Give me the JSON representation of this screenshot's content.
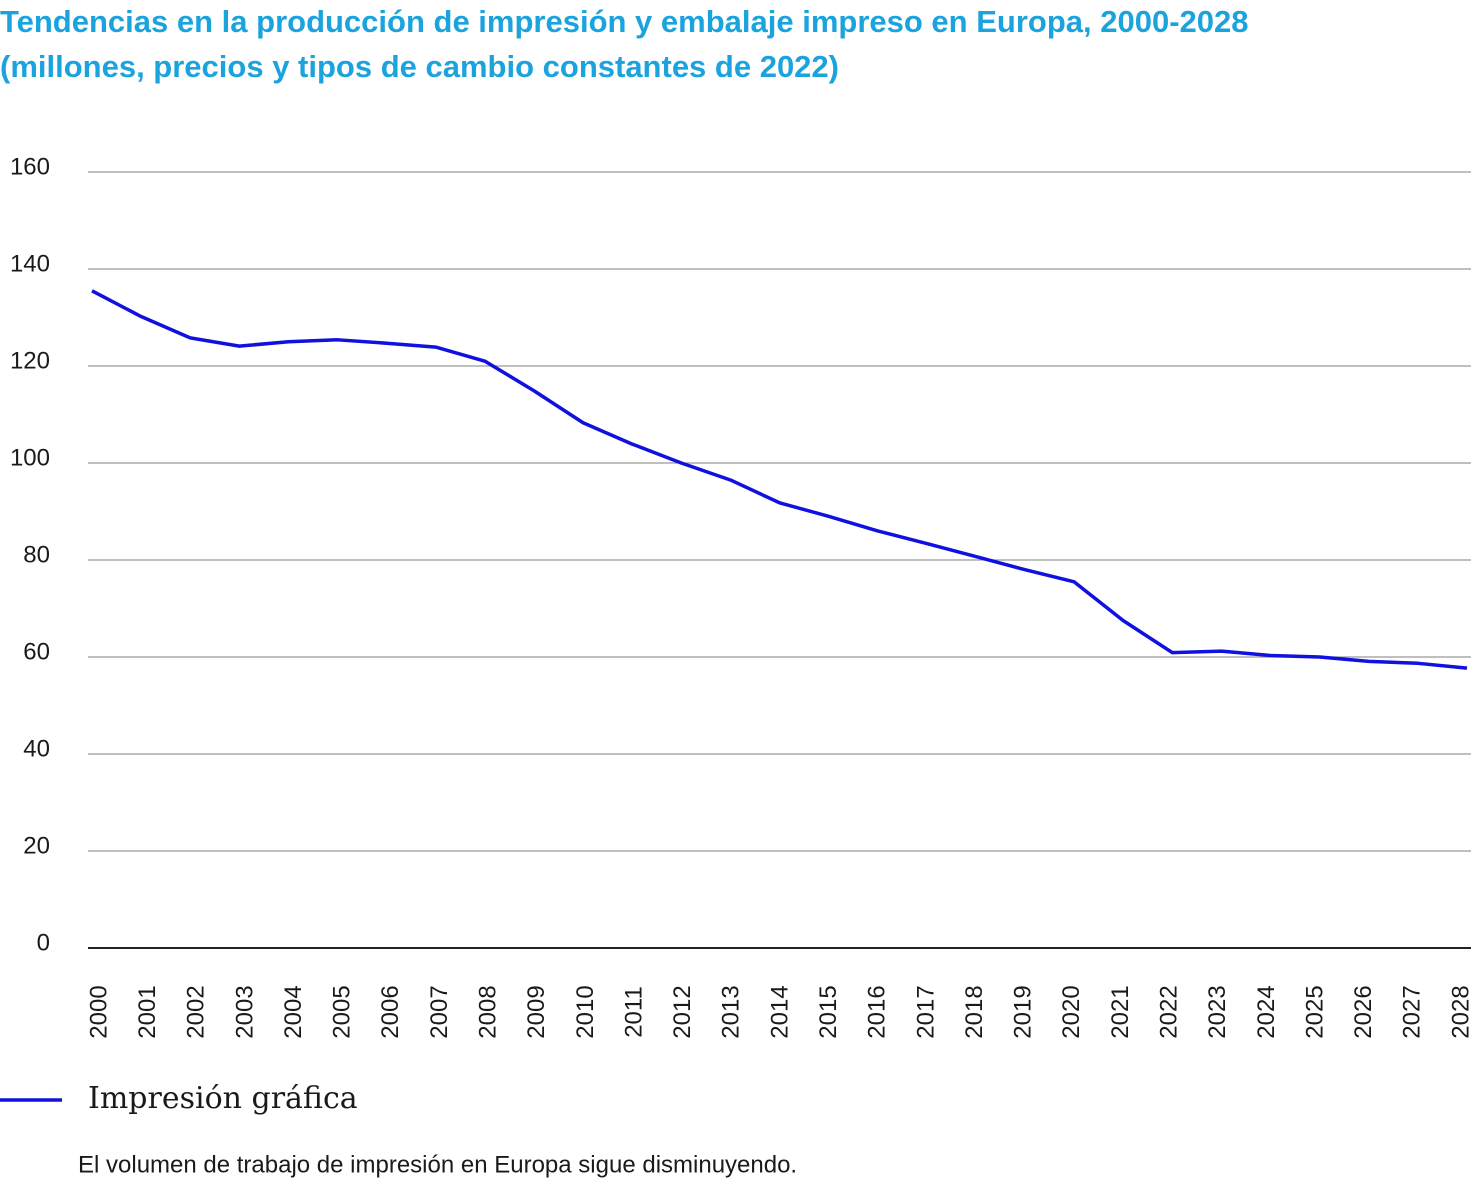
{
  "chart_data": {
    "type": "line",
    "title": "Tendencias en la producción de impresión y embalaje impreso en Europa, 2000-2028",
    "subtitle": "(millones, precios y tipos de cambio constantes de 2022)",
    "note": "El volumen de trabajo de impresión en Europa sigue disminuyendo.",
    "categories": [
      "2000",
      "2001",
      "2002",
      "2003",
      "2004",
      "2005",
      "2006",
      "2007",
      "2008",
      "2009",
      "2010",
      "2011",
      "2012",
      "2013",
      "2014",
      "2015",
      "2016",
      "2017",
      "2018",
      "2019",
      "2020",
      "2021",
      "2022",
      "2023",
      "2024",
      "2025",
      "2026",
      "2027",
      "2028"
    ],
    "series": [
      {
        "name": "Impresión gráfica",
        "color": "#1010e0",
        "values": [
          135.5,
          130.2,
          125.8,
          124.1,
          125.0,
          125.4,
          124.7,
          123.9,
          121,
          114.9,
          108.3,
          103.9,
          100,
          96.5,
          91.8,
          89,
          86,
          83.4,
          80.7,
          78,
          75.5,
          67.5,
          60.9,
          61.2,
          60.3,
          60,
          59.1,
          58.7,
          57.7
        ]
      }
    ],
    "ylim": [
      0,
      160
    ],
    "yticks": [
      0,
      20,
      40,
      60,
      80,
      100,
      120,
      140,
      160
    ],
    "grid": true
  }
}
